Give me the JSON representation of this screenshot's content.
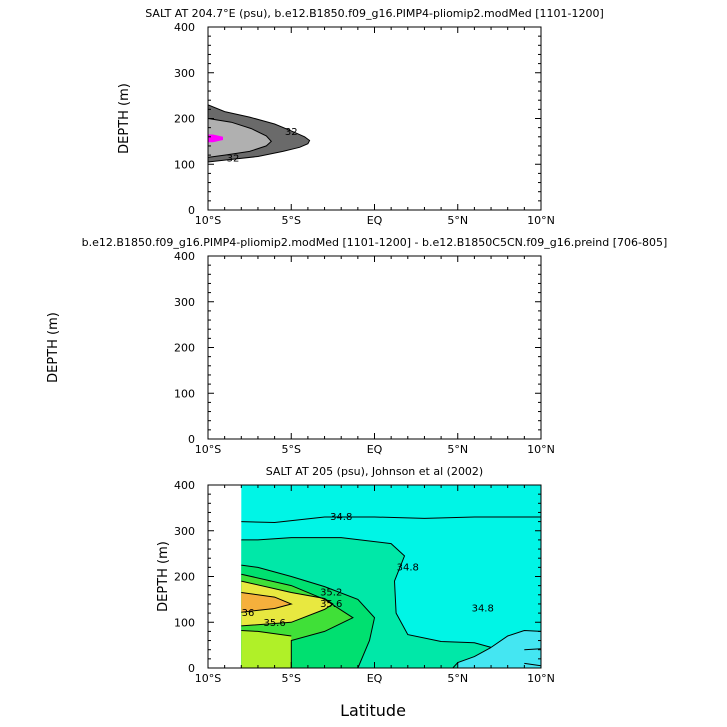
{
  "figure": {
    "xlabel": "Latitude"
  },
  "chart_data": [
    {
      "type": "contour",
      "title": "SALT AT 204.7°E (psu), b.e12.B1850.f09_g16.PIMP4-pliomip2.modMed [1101-1200]",
      "ylabel": "DEPTH (m)",
      "xlim": [
        -10,
        10
      ],
      "ylim": [
        400,
        0
      ],
      "x_ticks": [
        -10,
        -5,
        0,
        5,
        10
      ],
      "x_tick_labels": [
        "10°S",
        "5°S",
        "EQ",
        "5°N",
        "10°N"
      ],
      "y_ticks": [
        0,
        100,
        200,
        300,
        400
      ],
      "y_tick_labels": [
        "0",
        "100",
        "200",
        "300",
        "400"
      ],
      "fill_colors": [
        "#6a6a6a",
        "#b0b0b0",
        "#ff00ff"
      ],
      "regions": [
        {
          "name": "outer",
          "color": "#6a6a6a",
          "points": [
            [
              -10,
              105
            ],
            [
              -9,
              109
            ],
            [
              -7,
              117
            ],
            [
              -5.5,
              128
            ],
            [
              -4.5,
              137
            ],
            [
              -4,
              145
            ],
            [
              -3.9,
              152
            ],
            [
              -4.2,
              160
            ],
            [
              -5,
              173
            ],
            [
              -6,
              188
            ],
            [
              -7.5,
              203
            ],
            [
              -9,
              215
            ],
            [
              -10,
              230
            ]
          ]
        },
        {
          "name": "inner",
          "color": "#b0b0b0",
          "points": [
            [
              -10,
              115
            ],
            [
              -9,
              120
            ],
            [
              -7.5,
              128
            ],
            [
              -6.5,
              140
            ],
            [
              -6.2,
              150
            ],
            [
              -6.5,
              162
            ],
            [
              -7.4,
              178
            ],
            [
              -8.6,
              192
            ],
            [
              -10,
              200
            ]
          ]
        },
        {
          "name": "core",
          "color": "#ff00ff",
          "points": [
            [
              -10,
              148
            ],
            [
              -9.7,
              148
            ],
            [
              -9.1,
              153
            ],
            [
              -9.1,
              160
            ],
            [
              -9.7,
              165
            ],
            [
              -10,
              165
            ]
          ]
        }
      ],
      "contour_lines": [
        {
          "level": "32",
          "points": [
            [
              -10,
              105
            ],
            [
              -9,
              109
            ],
            [
              -7,
              117
            ],
            [
              -5.5,
              128
            ],
            [
              -4.5,
              137
            ],
            [
              -4,
              145
            ],
            [
              -3.9,
              152
            ],
            [
              -4.2,
              160
            ],
            [
              -5,
              173
            ],
            [
              -6,
              188
            ],
            [
              -7.5,
              203
            ],
            [
              -9,
              215
            ],
            [
              -10,
              230
            ]
          ]
        },
        {
          "level": "32",
          "points": [
            [
              -10,
              115
            ],
            [
              -9,
              120
            ],
            [
              -7.5,
              128
            ],
            [
              -6.5,
              140
            ],
            [
              -6.2,
              150
            ],
            [
              -6.5,
              162
            ],
            [
              -7.4,
              178
            ],
            [
              -8.6,
              192
            ],
            [
              -10,
              200
            ]
          ]
        }
      ],
      "contour_labels": [
        {
          "text": "32",
          "x": -8.5,
          "y": 113
        },
        {
          "text": "32",
          "x": -5,
          "y": 170
        }
      ]
    },
    {
      "type": "contour",
      "title": "b.e12.B1850.f09_g16.PIMP4-pliomip2.modMed [1101-1200] - b.e12.B1850C5CN.f09_g16.preind [706-805]",
      "ylabel": "DEPTH (m)",
      "xlim": [
        -10,
        10
      ],
      "ylim": [
        400,
        0
      ],
      "x_ticks": [
        -10,
        -5,
        0,
        5,
        10
      ],
      "x_tick_labels": [
        "10°S",
        "5°S",
        "EQ",
        "5°N",
        "10°N"
      ],
      "y_ticks": [
        0,
        100,
        200,
        300,
        400
      ],
      "y_tick_labels": [
        "0",
        "100",
        "200",
        "300",
        "400"
      ],
      "regions": [],
      "contour_lines": [],
      "contour_labels": []
    },
    {
      "type": "contour",
      "title": "SALT AT 205 (psu), Johnson et al (2002)",
      "ylabel": "DEPTH (m)",
      "xlim": [
        -10,
        10
      ],
      "ylim": [
        400,
        0
      ],
      "x_ticks": [
        -10,
        -5,
        0,
        5,
        10
      ],
      "x_tick_labels": [
        "10°S",
        "5°S",
        "EQ",
        "5°N",
        "10°N"
      ],
      "y_ticks": [
        0,
        100,
        200,
        300,
        400
      ],
      "y_tick_labels": [
        "0",
        "100",
        "200",
        "300",
        "400"
      ],
      "data_xrange": [
        -8,
        10
      ],
      "data_yrange": [
        0,
        400
      ],
      "background_color": "#00f5e6",
      "regions": [
        {
          "name": "band-lt-34.8-surface",
          "color": "#44e6f2",
          "points": [
            [
              5,
              0
            ],
            [
              10,
              0
            ],
            [
              10,
              80
            ],
            [
              9,
              82
            ],
            [
              8,
              70
            ],
            [
              7,
              45
            ],
            [
              6,
              25
            ],
            [
              5,
              12
            ]
          ]
        },
        {
          "name": "band-34.8-35.2",
          "color": "#00e8a8",
          "points": [
            [
              -8,
              0
            ],
            [
              5,
              0
            ],
            [
              5,
              12
            ],
            [
              6,
              25
            ],
            [
              7,
              45
            ],
            [
              6,
              55
            ],
            [
              4,
              58
            ],
            [
              2,
              73
            ],
            [
              1.3,
              120
            ],
            [
              1.2,
              190
            ],
            [
              1.8,
              245
            ],
            [
              1,
              272
            ],
            [
              -2,
              285
            ],
            [
              -5,
              285
            ],
            [
              -7,
              280
            ],
            [
              -8,
              280
            ]
          ]
        },
        {
          "name": "band-35.2-35.6",
          "color": "#00e070",
          "points": [
            [
              -8,
              0
            ],
            [
              -1,
              0
            ],
            [
              -0.3,
              60
            ],
            [
              0,
              110
            ],
            [
              -1,
              150
            ],
            [
              -3,
              178
            ],
            [
              -5,
              200
            ],
            [
              -7,
              220
            ],
            [
              -8,
              225
            ]
          ]
        },
        {
          "name": "band-35.6-36a",
          "color": "#40e038",
          "points": [
            [
              -8,
              0
            ],
            [
              -5,
              0
            ],
            [
              -5,
              60
            ],
            [
              -3,
              80
            ],
            [
              -1.3,
              110
            ],
            [
              -3,
              150
            ],
            [
              -5,
              180
            ],
            [
              -8,
              205
            ]
          ]
        },
        {
          "name": "band-surface-green",
          "color": "#b0f028",
          "points": [
            [
              -8,
              0
            ],
            [
              -5,
              0
            ],
            [
              -5,
              70
            ],
            [
              -7,
              80
            ],
            [
              -8,
              82
            ]
          ]
        },
        {
          "name": "band-36",
          "color": "#e8e840",
          "points": [
            [
              -8,
              92
            ],
            [
              -5,
              100
            ],
            [
              -3,
              128
            ],
            [
              -2.5,
              140
            ],
            [
              -3,
              152
            ],
            [
              -5,
              165
            ],
            [
              -8,
              190
            ]
          ]
        },
        {
          "name": "band-max",
          "color": "#f5b03c",
          "points": [
            [
              -8,
              122
            ],
            [
              -6,
              130
            ],
            [
              -5,
              140
            ],
            [
              -6,
              155
            ],
            [
              -8,
              165
            ]
          ]
        }
      ],
      "contour_lines": [
        {
          "level": "34.8",
          "points": [
            [
              7,
              45
            ],
            [
              6,
              25
            ],
            [
              5,
              12
            ],
            [
              4.7,
              0
            ]
          ]
        },
        {
          "level": "34.8",
          "points": [
            [
              7,
              45
            ],
            [
              8,
              70
            ],
            [
              9,
              82
            ],
            [
              10,
              80
            ]
          ]
        },
        {
          "level": "34.8",
          "points": [
            [
              7,
              45
            ],
            [
              6,
              55
            ],
            [
              4,
              58
            ],
            [
              2,
              73
            ],
            [
              1.3,
              120
            ],
            [
              1.2,
              190
            ],
            [
              1.8,
              245
            ],
            [
              1,
              272
            ],
            [
              -2,
              285
            ],
            [
              -5,
              285
            ],
            [
              -7,
              280
            ],
            [
              -8,
              280
            ]
          ]
        },
        {
          "level": "34.8",
          "points": [
            [
              -8,
              320
            ],
            [
              -6,
              318
            ],
            [
              -3,
              330
            ],
            [
              0,
              330
            ],
            [
              3,
              327
            ],
            [
              6,
              330
            ],
            [
              10,
              330
            ]
          ]
        },
        {
          "level": "35.2",
          "points": [
            [
              -1,
              0
            ],
            [
              -0.3,
              60
            ],
            [
              0,
              110
            ],
            [
              -1,
              150
            ],
            [
              -3,
              178
            ],
            [
              -5,
              200
            ],
            [
              -7,
              220
            ],
            [
              -8,
              225
            ]
          ]
        },
        {
          "level": "35.6",
          "points": [
            [
              -5,
              0
            ],
            [
              -5,
              60
            ],
            [
              -3,
              80
            ],
            [
              -1.3,
              110
            ],
            [
              -3,
              150
            ],
            [
              -5,
              180
            ],
            [
              -8,
              205
            ]
          ]
        },
        {
          "level": "36",
          "points": [
            [
              -8,
              92
            ],
            [
              -5,
              100
            ],
            [
              -3,
              128
            ],
            [
              -2.5,
              140
            ],
            [
              -3,
              152
            ],
            [
              -5,
              165
            ],
            [
              -8,
              190
            ]
          ]
        },
        {
          "level": "",
          "points": [
            [
              -8,
              122
            ],
            [
              -6,
              130
            ],
            [
              -5,
              140
            ],
            [
              -6,
              155
            ],
            [
              -8,
              165
            ]
          ]
        },
        {
          "level": "",
          "points": [
            [
              -5,
              70
            ],
            [
              -7,
              80
            ],
            [
              -8,
              82
            ]
          ]
        },
        {
          "level": "",
          "points": [
            [
              9,
              10
            ],
            [
              10,
              5
            ]
          ]
        },
        {
          "level": "",
          "points": [
            [
              9,
              40
            ],
            [
              10,
              42
            ]
          ]
        }
      ],
      "contour_labels": [
        {
          "text": "35.6",
          "x": -6,
          "y": 98
        },
        {
          "text": "36",
          "x": -7.6,
          "y": 120
        },
        {
          "text": "35.6",
          "x": -2.6,
          "y": 140
        },
        {
          "text": "35.2",
          "x": -2.6,
          "y": 165
        },
        {
          "text": "34.8",
          "x": 6.5,
          "y": 130
        },
        {
          "text": "34.8",
          "x": 2,
          "y": 220
        },
        {
          "text": "34.8",
          "x": -2,
          "y": 330
        }
      ]
    }
  ]
}
